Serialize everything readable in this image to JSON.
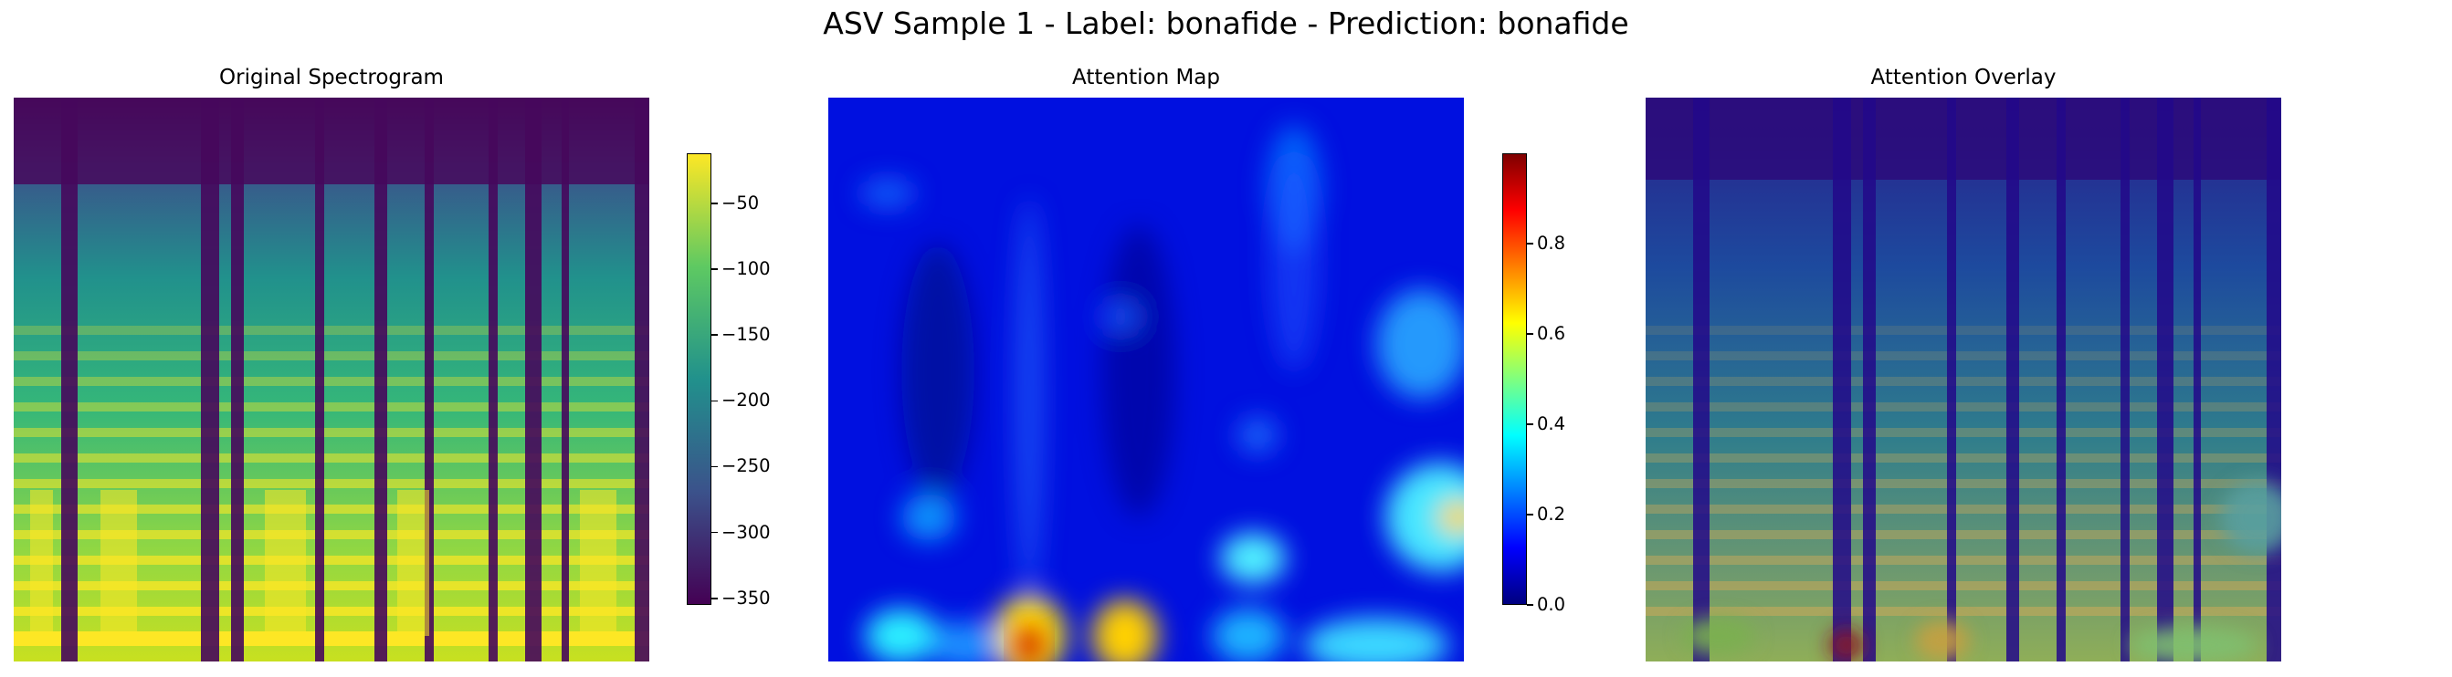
{
  "suptitle": "ASV Sample 1 - Label: bonafide - Prediction: bonafide",
  "chart_data": [
    {
      "type": "heatmap",
      "title": "Original Spectrogram",
      "colormap": "viridis",
      "axis": "off",
      "colorbar": {
        "range": [
          -355,
          -12
        ],
        "ticks": [
          -50,
          -100,
          -150,
          -200,
          -250,
          -300,
          -350
        ],
        "tick_labels": [
          "−50",
          "−100",
          "−150",
          "−200",
          "−250",
          "−300",
          "−350"
        ]
      }
    },
    {
      "type": "heatmap",
      "title": "Attention Map",
      "colormap": "jet",
      "axis": "off",
      "colorbar": {
        "range": [
          0.0,
          1.0
        ],
        "ticks": [
          0.0,
          0.2,
          0.4,
          0.6,
          0.8
        ],
        "tick_labels": [
          "0.0",
          "0.2",
          "0.4",
          "0.6",
          "0.8"
        ]
      }
    },
    {
      "type": "heatmap",
      "title": "Attention Overlay",
      "colormap": "viridis + jet overlay",
      "axis": "off"
    }
  ]
}
